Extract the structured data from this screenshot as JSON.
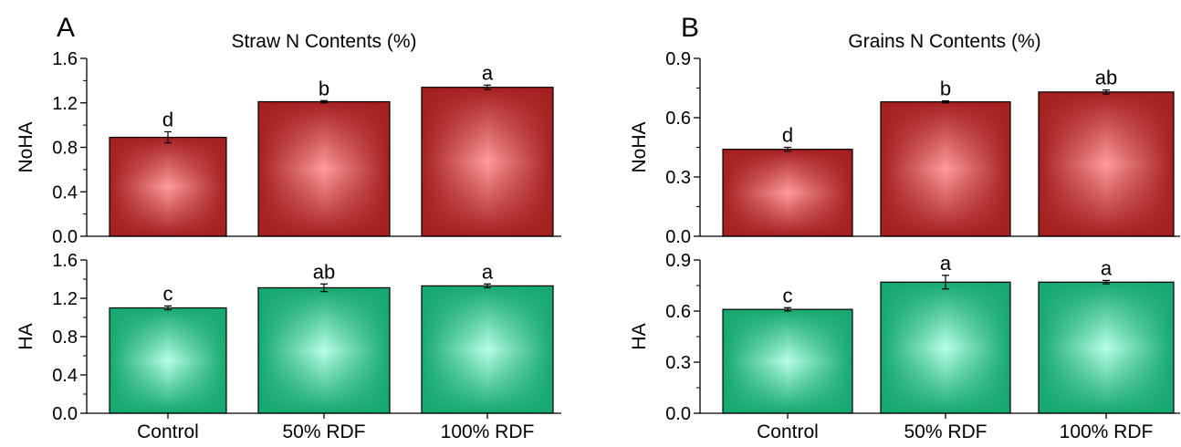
{
  "chart_data": [
    {
      "panel_label": "A",
      "title": "Straw N Contents (%)",
      "type": "bar",
      "categories": [
        "Control",
        "50% RDF",
        "100% RDF"
      ],
      "ylim": [
        0,
        1.6
      ],
      "yticks": [
        0.0,
        0.4,
        0.8,
        1.2,
        1.6
      ],
      "tick_format_decimals": 1,
      "rows": [
        {
          "ylabel": "NoHA",
          "colors": {
            "edge": "#a51f1f",
            "center": "#ff9c9c",
            "border": "#000000"
          },
          "values": [
            0.89,
            1.21,
            1.34
          ],
          "errors": [
            0.05,
            0.01,
            0.02
          ],
          "letters": [
            "d",
            "b",
            "a"
          ]
        },
        {
          "ylabel": "HA",
          "colors": {
            "edge": "#15a86f",
            "center": "#b8ffe6",
            "border": "#000000"
          },
          "values": [
            1.1,
            1.31,
            1.33
          ],
          "errors": [
            0.02,
            0.04,
            0.02
          ],
          "letters": [
            "c",
            "ab",
            "a"
          ]
        }
      ]
    },
    {
      "panel_label": "B",
      "title": "Grains N Contents (%)",
      "type": "bar",
      "categories": [
        "Control",
        "50% RDF",
        "100% RDF"
      ],
      "ylim": [
        0,
        0.9
      ],
      "yticks": [
        0.0,
        0.3,
        0.6,
        0.9
      ],
      "tick_format_decimals": 1,
      "rows": [
        {
          "ylabel": "NoHA",
          "colors": {
            "edge": "#a51f1f",
            "center": "#ff9c9c",
            "border": "#000000"
          },
          "values": [
            0.44,
            0.68,
            0.73
          ],
          "errors": [
            0.01,
            0.005,
            0.01
          ],
          "letters": [
            "d",
            "b",
            "ab"
          ]
        },
        {
          "ylabel": "HA",
          "colors": {
            "edge": "#15a86f",
            "center": "#b8ffe6",
            "border": "#000000"
          },
          "values": [
            0.61,
            0.77,
            0.77
          ],
          "errors": [
            0.01,
            0.04,
            0.01
          ],
          "letters": [
            "c",
            "a",
            "a"
          ]
        }
      ]
    }
  ]
}
